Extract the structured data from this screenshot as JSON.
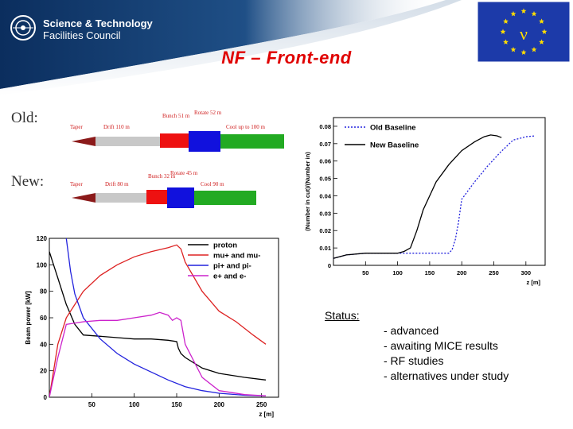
{
  "header": {
    "org_line1": "Science & Technology",
    "org_line2": "Facilities Council",
    "eu_symbol": "ν"
  },
  "slide": {
    "title": "NF – Front-end"
  },
  "schematics": {
    "old": {
      "label": "Old:",
      "segments": [
        "Taper",
        "Drift 110 m",
        "Bunch 51 m",
        "Rotate 52 m",
        "Cool up to 100 m"
      ]
    },
    "new": {
      "label": "New:",
      "segments": [
        "Taper",
        "Drift 80 m",
        "Bunch 32 m",
        "Rotate 45 m",
        "Cool 90 m"
      ]
    },
    "colors": {
      "taper": "#8b1a1a",
      "drift": "#c8c8c8",
      "bunch": "#ee1111",
      "rotate": "#1111dd",
      "cool": "#22aa22"
    }
  },
  "chart_data": [
    {
      "type": "line",
      "xlabel": "z [m]",
      "ylabel": "(Number in cut)/(Number in)",
      "xlim": [
        0,
        330
      ],
      "ylim": [
        0,
        0.085
      ],
      "xticks": [
        "50",
        "100",
        "150",
        "200",
        "250",
        "300"
      ],
      "yticks": [
        "0",
        "0.01",
        "0.02",
        "0.03",
        "0.04",
        "0.05",
        "0.06",
        "0.07",
        "0.08"
      ],
      "legend_position": "top-left",
      "series": [
        {
          "name": "Old Baseline",
          "color": "#2222dd",
          "dash": true,
          "x": [
            0,
            20,
            50,
            100,
            150,
            180,
            185,
            190,
            195,
            200,
            220,
            240,
            260,
            280,
            300,
            315
          ],
          "y": [
            0.004,
            0.006,
            0.007,
            0.007,
            0.007,
            0.007,
            0.009,
            0.015,
            0.025,
            0.038,
            0.048,
            0.057,
            0.065,
            0.072,
            0.074,
            0.0745
          ]
        },
        {
          "name": "New Baseline",
          "color": "#000000",
          "dash": false,
          "x": [
            0,
            20,
            50,
            100,
            110,
            120,
            130,
            140,
            150,
            160,
            180,
            200,
            220,
            235,
            245,
            255,
            262
          ],
          "y": [
            0.004,
            0.006,
            0.007,
            0.007,
            0.008,
            0.01,
            0.02,
            0.032,
            0.04,
            0.048,
            0.058,
            0.066,
            0.071,
            0.074,
            0.075,
            0.0745,
            0.0735
          ]
        }
      ]
    },
    {
      "type": "line",
      "xlabel": "z [m]",
      "ylabel": "Beam power [kW]",
      "xlim": [
        0,
        270
      ],
      "ylim": [
        0,
        120
      ],
      "xticks": [
        "50",
        "100",
        "150",
        "200",
        "250"
      ],
      "yticks": [
        "0",
        "20",
        "40",
        "60",
        "80",
        "100",
        "120"
      ],
      "legend_position": "top-right",
      "series": [
        {
          "name": "proton",
          "color": "#000000",
          "x": [
            0,
            5,
            10,
            20,
            30,
            40,
            60,
            80,
            100,
            120,
            140,
            150,
            152,
            155,
            160,
            180,
            200,
            230,
            255
          ],
          "y": [
            110,
            100,
            90,
            70,
            55,
            47,
            46,
            45,
            44,
            44,
            43,
            42,
            37,
            33,
            30,
            22,
            18,
            15,
            13
          ]
        },
        {
          "name": "mu+ and mu-",
          "color": "#dd2222",
          "x": [
            0,
            10,
            20,
            40,
            60,
            80,
            100,
            120,
            140,
            150,
            155,
            160,
            180,
            200,
            220,
            240,
            255
          ],
          "y": [
            0,
            40,
            60,
            80,
            92,
            100,
            106,
            110,
            113,
            115,
            112,
            102,
            80,
            65,
            57,
            47,
            40
          ]
        },
        {
          "name": "pi+ and pi-",
          "color": "#2222dd",
          "x": [
            20,
            25,
            30,
            40,
            60,
            80,
            100,
            120,
            140,
            160,
            180,
            200,
            230,
            255
          ],
          "y": [
            120,
            95,
            78,
            60,
            44,
            33,
            25,
            19,
            13,
            8,
            5,
            3,
            1.5,
            1
          ]
        },
        {
          "name": "e+ and e-",
          "color": "#cc22cc",
          "x": [
            0,
            10,
            20,
            40,
            60,
            80,
            100,
            120,
            130,
            140,
            145,
            150,
            155,
            160,
            180,
            200,
            230,
            255
          ],
          "y": [
            0,
            30,
            55,
            57,
            58,
            58,
            60,
            62,
            64,
            62,
            58,
            60,
            58,
            40,
            15,
            5,
            2,
            1
          ]
        }
      ]
    }
  ],
  "status": {
    "title": "Status:",
    "items": [
      "- advanced",
      "- awaiting MICE results",
      "- RF studies",
      "- alternatives under study"
    ]
  }
}
